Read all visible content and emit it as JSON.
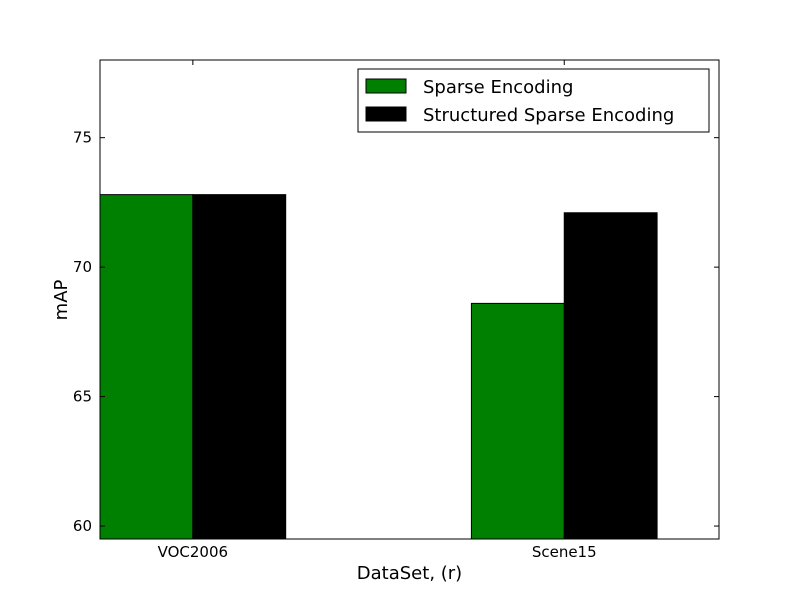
{
  "chart_data": {
    "type": "bar",
    "title": "",
    "xlabel": "DataSet, (r)",
    "ylabel": "mAP",
    "categories": [
      "VOC2006",
      "Scene15"
    ],
    "series": [
      {
        "name": "Sparse Encoding",
        "color": "#008000",
        "values": [
          72.8,
          68.6
        ]
      },
      {
        "name": "Structured Sparse Encoding",
        "color": "#000000",
        "values": [
          72.8,
          72.1
        ]
      }
    ],
    "ylim": [
      59.5,
      78
    ],
    "yticks": [
      60,
      65,
      70,
      75
    ],
    "grid": false,
    "legend_position": "top-right"
  }
}
